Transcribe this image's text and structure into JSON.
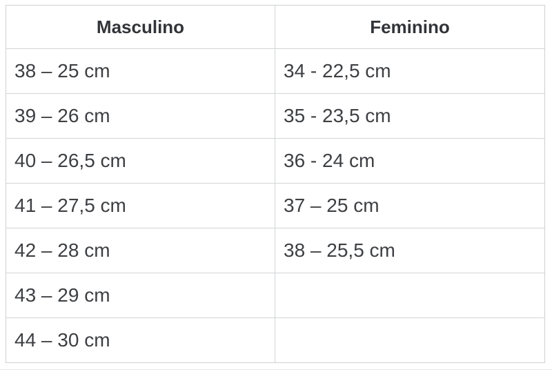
{
  "table": {
    "columns": [
      {
        "header": "Masculino",
        "rows": [
          "38 – 25 cm",
          "39 – 26 cm",
          "40 – 26,5 cm",
          "41 – 27,5 cm",
          "42 – 28 cm",
          "43 – 29 cm",
          "44 – 30 cm"
        ]
      },
      {
        "header": "Feminino",
        "rows": [
          "34 - 22,5 cm",
          "35 - 23,5 cm",
          "36 - 24 cm",
          "37 – 25 cm",
          "38 – 25,5 cm",
          "",
          ""
        ]
      }
    ]
  },
  "chart_data": {
    "type": "table",
    "columns": [
      "Masculino",
      "Feminino"
    ],
    "rows": [
      [
        "38 – 25 cm",
        "34 - 22,5 cm"
      ],
      [
        "39 – 26 cm",
        "35 - 23,5 cm"
      ],
      [
        "40 – 26,5 cm",
        "36 - 24 cm"
      ],
      [
        "41 – 27,5 cm",
        "37 – 25 cm"
      ],
      [
        "42 – 28 cm",
        "38 – 25,5 cm"
      ],
      [
        "43 – 29 cm",
        ""
      ],
      [
        "44 – 30 cm",
        ""
      ]
    ]
  },
  "colors": {
    "outer_border": "#cdd0d2",
    "inner_border": "#d2d4d6",
    "header_text": "#313438",
    "cell_text": "#3d3f42",
    "background": "#ffffff",
    "faint_bottom_line": "#e4e6e7"
  }
}
